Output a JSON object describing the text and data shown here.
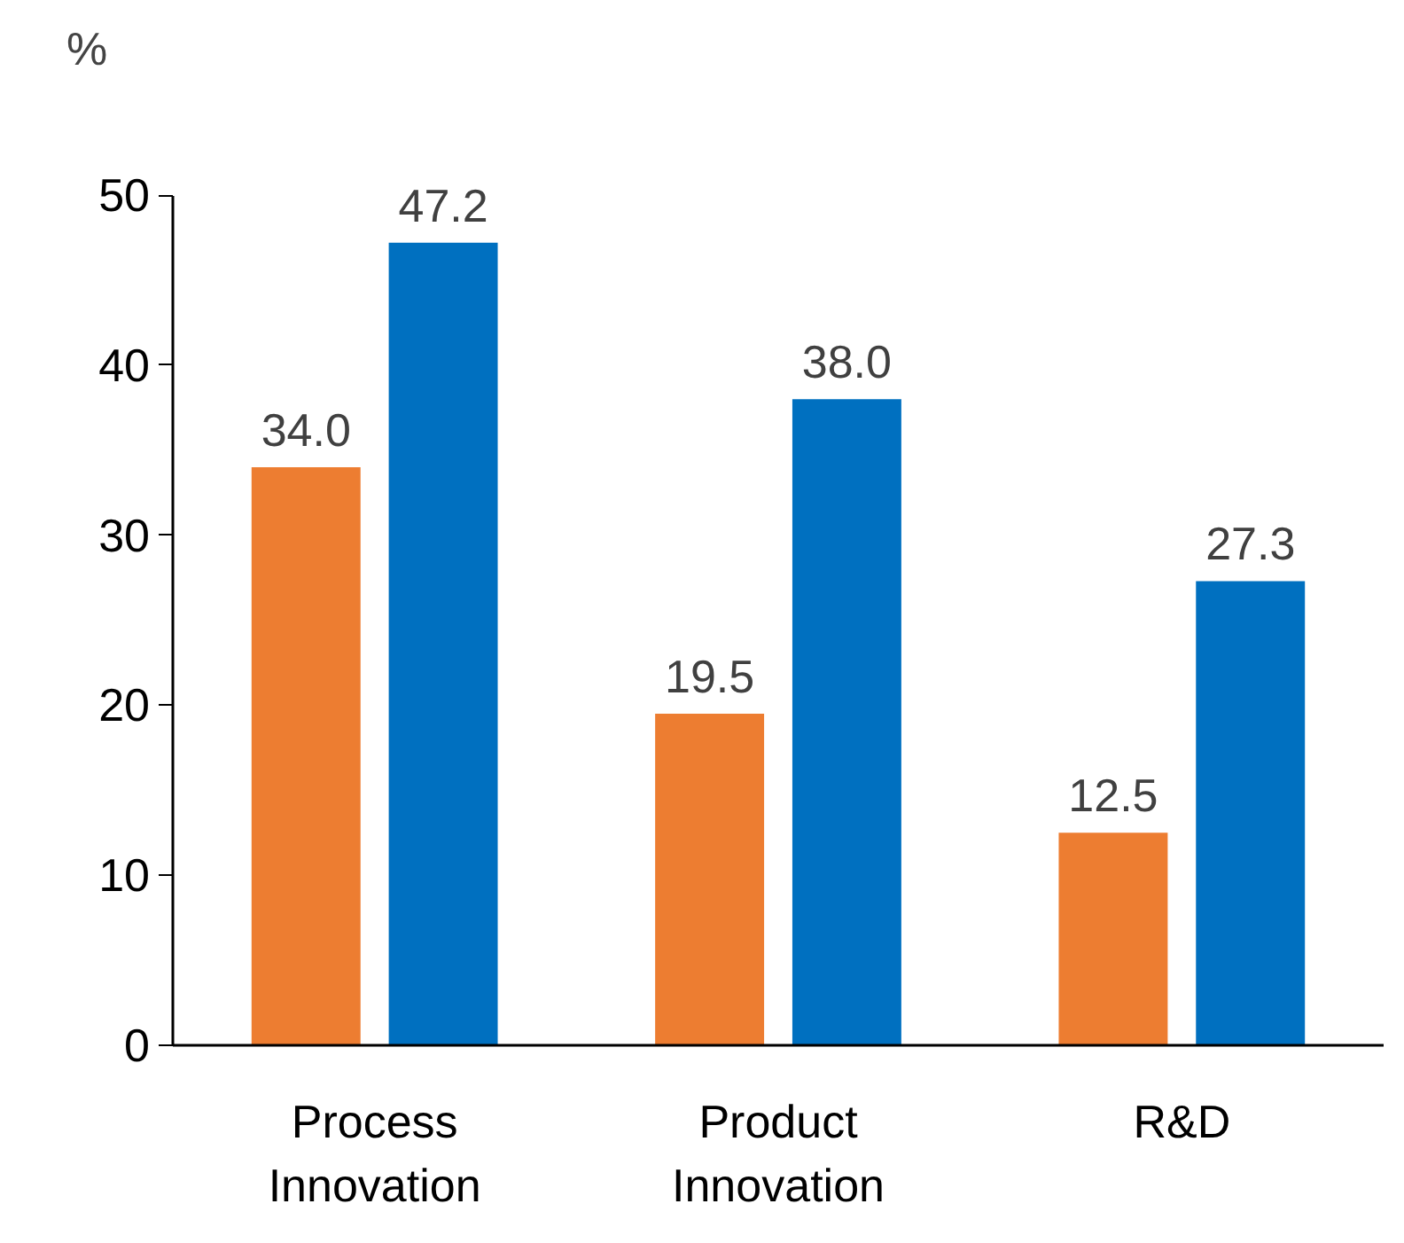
{
  "chart_data": {
    "type": "bar",
    "ylabel": "%",
    "categories": [
      "Process Innovation",
      "Product Innovation",
      "R&D"
    ],
    "series": [
      {
        "color": "#ed7d31",
        "values": [
          34.0,
          19.5,
          12.5
        ],
        "value_labels": [
          "34.0",
          "19.5",
          "12.5"
        ]
      },
      {
        "color": "#0070c0",
        "values": [
          47.2,
          38.0,
          27.3
        ],
        "value_labels": [
          "47.2",
          "38.0",
          "27.3"
        ]
      }
    ],
    "ylim": [
      0,
      50
    ],
    "yticks": [
      0,
      10,
      20,
      30,
      40,
      50
    ],
    "grid": false
  }
}
